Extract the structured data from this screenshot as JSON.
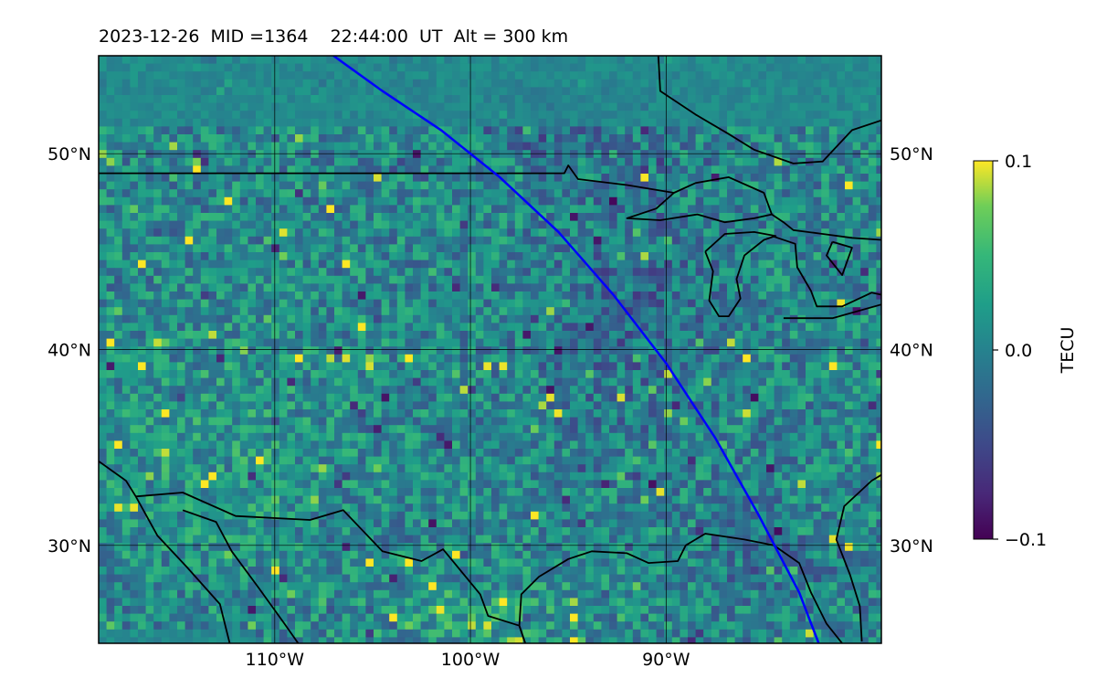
{
  "title": "2023-12-26  MID =1364    22:44:00  UT  Alt = 300 km",
  "map": {
    "lon_range": [
      -119,
      -79
    ],
    "lat_range": [
      25,
      55
    ],
    "lon_ticks": [
      {
        "value": -110,
        "label": "110°W"
      },
      {
        "value": -100,
        "label": "100°W"
      },
      {
        "value": -90,
        "label": "90°W"
      }
    ],
    "lat_ticks": [
      {
        "value": 30,
        "label": "30°N"
      },
      {
        "value": 40,
        "label": "40°N"
      },
      {
        "value": 50,
        "label": "50°N"
      }
    ],
    "colormap": "viridis",
    "track_color": "#0000ff",
    "coast_color": "#000000",
    "satellite_track": [
      [
        -107.0,
        55.0
      ],
      [
        -104.5,
        53.2
      ],
      [
        -101.5,
        51.2
      ],
      [
        -98.5,
        48.8
      ],
      [
        -95.5,
        46.0
      ],
      [
        -92.7,
        42.8
      ],
      [
        -90.0,
        39.3
      ],
      [
        -87.5,
        35.5
      ],
      [
        -85.3,
        31.6
      ],
      [
        -83.2,
        27.6
      ],
      [
        -82.2,
        25.0
      ]
    ],
    "coastlines": [
      [
        [
          -119.0,
          49.0
        ],
        [
          -95.2,
          49.0
        ],
        [
          -95.0,
          49.4
        ],
        [
          -94.5,
          48.7
        ],
        [
          -92.0,
          48.4
        ],
        [
          -89.6,
          48.0
        ]
      ],
      [
        [
          -89.6,
          48.0
        ],
        [
          -88.5,
          48.5
        ],
        [
          -86.8,
          48.8
        ],
        [
          -85.0,
          48.0
        ],
        [
          -84.6,
          46.9
        ],
        [
          -85.5,
          46.7
        ],
        [
          -87.0,
          46.5
        ],
        [
          -88.4,
          46.9
        ],
        [
          -90.3,
          46.6
        ],
        [
          -92.0,
          46.7
        ],
        [
          -90.5,
          47.2
        ],
        [
          -89.6,
          48.0
        ]
      ],
      [
        [
          -84.6,
          46.9
        ],
        [
          -84.0,
          46.5
        ],
        [
          -83.5,
          46.1
        ],
        [
          -82.0,
          45.9
        ],
        [
          -80.5,
          45.7
        ],
        [
          -79.0,
          45.6
        ]
      ],
      [
        [
          -88.0,
          45.0
        ],
        [
          -87.6,
          44.0
        ],
        [
          -87.8,
          42.5
        ],
        [
          -87.3,
          41.7
        ],
        [
          -86.8,
          41.7
        ],
        [
          -86.2,
          42.6
        ],
        [
          -86.4,
          43.6
        ],
        [
          -86.0,
          44.8
        ],
        [
          -85.0,
          45.6
        ],
        [
          -84.4,
          45.8
        ],
        [
          -85.5,
          46.0
        ],
        [
          -87.0,
          45.9
        ],
        [
          -88.0,
          45.0
        ]
      ],
      [
        [
          -84.6,
          45.8
        ],
        [
          -83.4,
          45.4
        ],
        [
          -83.3,
          44.2
        ],
        [
          -82.6,
          43.0
        ],
        [
          -82.3,
          42.2
        ],
        [
          -81.0,
          42.2
        ],
        [
          -79.5,
          42.9
        ],
        [
          -79.0,
          42.8
        ]
      ],
      [
        [
          -84.0,
          41.6
        ],
        [
          -81.5,
          41.6
        ],
        [
          -79.0,
          42.3
        ]
      ],
      [
        [
          -81.5,
          45.5
        ],
        [
          -81.8,
          44.8
        ],
        [
          -81.0,
          43.8
        ],
        [
          -80.5,
          45.2
        ],
        [
          -81.5,
          45.5
        ]
      ],
      [
        [
          -90.4,
          55.0
        ],
        [
          -90.3,
          53.2
        ],
        [
          -88.5,
          52.0
        ],
        [
          -86.8,
          51.0
        ],
        [
          -85.5,
          50.2
        ],
        [
          -83.5,
          49.5
        ],
        [
          -82.0,
          49.6
        ],
        [
          -80.5,
          51.2
        ],
        [
          -79.0,
          51.7
        ]
      ],
      [
        [
          -119.0,
          34.3
        ],
        [
          -117.6,
          33.3
        ],
        [
          -117.1,
          32.5
        ],
        [
          -116.0,
          30.5
        ],
        [
          -114.5,
          28.9
        ],
        [
          -112.8,
          27.0
        ],
        [
          -112.3,
          25.0
        ]
      ],
      [
        [
          -117.1,
          32.5
        ],
        [
          -114.7,
          32.7
        ],
        [
          -112.0,
          31.5
        ],
        [
          -108.2,
          31.3
        ],
        [
          -106.5,
          31.8
        ],
        [
          -104.5,
          29.7
        ],
        [
          -102.5,
          29.2
        ],
        [
          -101.4,
          29.8
        ],
        [
          -99.5,
          27.5
        ],
        [
          -99.1,
          26.4
        ],
        [
          -97.5,
          25.9
        ],
        [
          -97.2,
          25.0
        ]
      ],
      [
        [
          -114.7,
          31.8
        ],
        [
          -113.0,
          31.2
        ],
        [
          -112.2,
          29.7
        ],
        [
          -110.8,
          27.8
        ],
        [
          -109.5,
          26.0
        ],
        [
          -108.8,
          25.0
        ]
      ],
      [
        [
          -97.2,
          25.0
        ],
        [
          -97.5,
          25.9
        ],
        [
          -97.4,
          27.5
        ],
        [
          -96.5,
          28.4
        ],
        [
          -95.0,
          29.3
        ],
        [
          -93.8,
          29.7
        ],
        [
          -92.0,
          29.6
        ],
        [
          -90.9,
          29.1
        ],
        [
          -89.4,
          29.2
        ],
        [
          -89.0,
          30.0
        ],
        [
          -88.0,
          30.6
        ],
        [
          -86.0,
          30.3
        ],
        [
          -84.5,
          30.0
        ],
        [
          -83.2,
          29.1
        ],
        [
          -82.6,
          27.6
        ],
        [
          -81.8,
          26.0
        ],
        [
          -81.0,
          25.0
        ]
      ],
      [
        [
          -80.0,
          25.1
        ],
        [
          -80.1,
          26.9
        ],
        [
          -80.6,
          28.5
        ],
        [
          -81.3,
          30.3
        ],
        [
          -80.9,
          32.0
        ],
        [
          -79.5,
          33.3
        ],
        [
          -79.0,
          33.6
        ]
      ]
    ],
    "grid": true
  },
  "colorbar": {
    "label": "TECU",
    "min": -0.1,
    "max": 0.1,
    "ticks": [
      {
        "value": 0.1,
        "label": "0.1"
      },
      {
        "value": 0.0,
        "label": "0.0"
      },
      {
        "value": -0.1,
        "label": "−0.1"
      }
    ]
  },
  "chart_data": {
    "type": "heatmap",
    "title": "2023-12-26  MID =1364    22:44:00  UT  Alt = 300 km",
    "xlabel": "",
    "ylabel": "",
    "xlim": [
      -119,
      -79
    ],
    "ylim": [
      25,
      55
    ],
    "colorbar_label": "TECU",
    "vlim": [
      -0.1,
      0.1
    ],
    "grid": true,
    "series": [
      {
        "values": "dTEC field approx. −0.1 to 0.1 TECU; higher positive values (yellow) near 100°W 25–28°N and 88°W 38°N, negative (purple) patches near 90–95°W 35–45°N and 85°W 27–32°N"
      }
    ]
  }
}
